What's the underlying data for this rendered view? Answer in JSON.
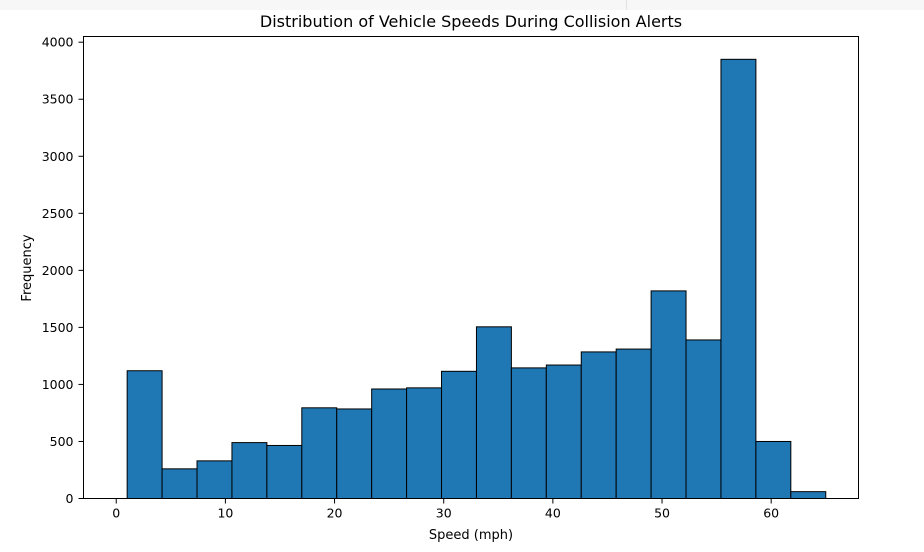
{
  "chart_data": {
    "type": "bar",
    "title": "Distribution of Vehicle Speeds During Collision Alerts",
    "xlabel": "Speed (mph)",
    "ylabel": "Frequency",
    "bins": [
      [
        1.0,
        4.2
      ],
      [
        4.2,
        7.4
      ],
      [
        7.4,
        10.6
      ],
      [
        10.6,
        13.8
      ],
      [
        13.8,
        17.0
      ],
      [
        17.0,
        20.2
      ],
      [
        20.2,
        23.4
      ],
      [
        23.4,
        26.6
      ],
      [
        26.6,
        29.8
      ],
      [
        29.8,
        33.0
      ],
      [
        33.0,
        36.2
      ],
      [
        36.2,
        39.4
      ],
      [
        39.4,
        42.6
      ],
      [
        42.6,
        45.8
      ],
      [
        45.8,
        49.0
      ],
      [
        49.0,
        52.2
      ],
      [
        52.2,
        55.4
      ],
      [
        55.4,
        58.6
      ],
      [
        58.6,
        61.8
      ],
      [
        61.8,
        65.0
      ]
    ],
    "values": [
      1120,
      260,
      330,
      490,
      465,
      795,
      785,
      960,
      970,
      1115,
      1505,
      1145,
      1170,
      1285,
      1310,
      1820,
      1390,
      3850,
      500,
      60
    ],
    "xlim": [
      -3,
      68
    ],
    "ylim": [
      0,
      4050
    ],
    "x_ticks": [
      0,
      10,
      20,
      30,
      40,
      50,
      60
    ],
    "x_tick_labels": [
      "0",
      "10",
      "20",
      "30",
      "40",
      "50",
      "60"
    ],
    "y_ticks": [
      0,
      500,
      1000,
      1500,
      2000,
      2500,
      3000,
      3500,
      4000
    ],
    "y_tick_labels": [
      "0",
      "500",
      "1000",
      "1500",
      "2000",
      "2500",
      "3000",
      "3500",
      "4000"
    ],
    "bar_color": "#1f77b4",
    "edge_color": "#000000",
    "grid": false,
    "legend": false
  }
}
